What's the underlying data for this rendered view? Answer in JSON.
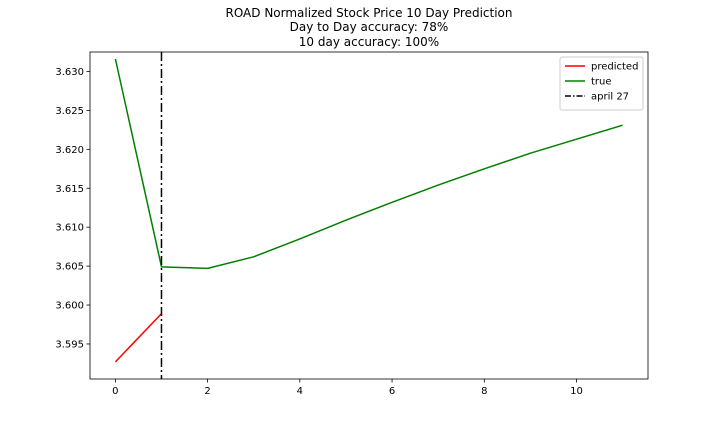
{
  "chart_data": {
    "type": "line",
    "title_lines": [
      "ROAD Normalized Stock Price 10 Day Prediction",
      "Day to Day accuracy: 78%",
      "10 day accuracy: 100%"
    ],
    "xlabel": "",
    "ylabel": "",
    "xlim": [
      -0.55,
      11.55
    ],
    "ylim": [
      3.5905,
      3.6325
    ],
    "x_ticks": [
      0,
      2,
      4,
      6,
      8,
      10
    ],
    "y_ticks": [
      3.595,
      3.6,
      3.605,
      3.61,
      3.615,
      3.62,
      3.625,
      3.63
    ],
    "grid": false,
    "legend_position": "top-right",
    "series": [
      {
        "name": "predicted",
        "color": "#ff0000",
        "style": "solid",
        "x": [
          0,
          1
        ],
        "y": [
          3.5927,
          3.5989
        ]
      },
      {
        "name": "true",
        "color": "#008000",
        "style": "solid",
        "x": [
          0,
          1,
          2,
          3,
          4,
          5,
          6,
          7,
          8,
          9,
          10,
          11
        ],
        "y": [
          3.6316,
          3.6049,
          3.6047,
          3.6062,
          3.6085,
          3.6109,
          3.6132,
          3.6154,
          3.6175,
          3.6195,
          3.6213,
          3.6231
        ]
      }
    ],
    "vlines": [
      {
        "name": "april 27",
        "x": 1,
        "color": "#000000",
        "style": "dashdot"
      }
    ]
  }
}
